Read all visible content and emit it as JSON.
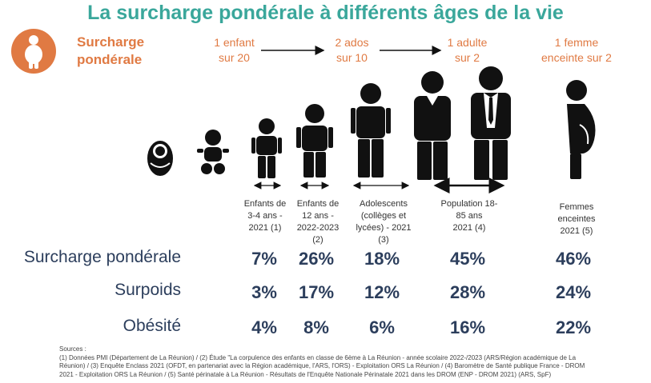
{
  "title": "La surcharge pondérale à différents âges de la vie",
  "legend": {
    "line1": "Surcharge",
    "line2": "pondérale",
    "icon": "overweight-person-icon"
  },
  "ratios": [
    {
      "line1": "1 enfant",
      "line2": "sur 20"
    },
    {
      "line1": "2 ados",
      "line2": "sur 10"
    },
    {
      "line1": "1 adulte",
      "line2": "sur 2"
    },
    {
      "line1": "1 femme",
      "line2": "enceinte sur 2"
    }
  ],
  "columns": [
    {
      "lines": [
        "Enfants de",
        "3-4 ans -",
        "2021 (1)"
      ]
    },
    {
      "lines": [
        "Enfants de",
        "12 ans -",
        "2022-2023",
        "(2)"
      ]
    },
    {
      "lines": [
        "Adolescents",
        "(collèges et",
        "lycées) - 2021",
        "(3)"
      ]
    },
    {
      "lines": [
        "Population 18-",
        "85 ans",
        "2021 (4)"
      ]
    },
    {
      "lines": [
        "Femmes",
        "enceintes",
        "2021 (5)"
      ]
    }
  ],
  "rows": [
    {
      "label": "Surcharge pondérale",
      "values": [
        "7%",
        "26%",
        "18%",
        "45%",
        "46%"
      ]
    },
    {
      "label": "Surpoids",
      "values": [
        "3%",
        "17%",
        "12%",
        "28%",
        "24%"
      ]
    },
    {
      "label": "Obésité",
      "values": [
        "4%",
        "8%",
        "6%",
        "16%",
        "22%"
      ]
    }
  ],
  "sources": [
    "Sources :",
    "(1) Données PMI (Département de La Réunion) / (2) Étude \"La corpulence des enfants en classe de 6ème à La Réunion - année scolaire 2022-/2023 (ARS/Région académique de La",
    "Réunion) / (3) Enquête Enclass 2021 (OFDT, en partenariat avec la Région académique, l'ARS, l'ORS) - Exploitation ORS La Réunion / (4) Baromètre de Santé publique France - DROM",
    "2021 - Exploitation ORS La Réunion /  (5) Santé périnatale à La Réunion - Résultats de l'Enquête Nationale Périnatale 2021 dans les DROM (ENP - DROM 2021) (ARS, SpF)"
  ],
  "colors": {
    "title": "#3aa79b",
    "accent": "#e07a43",
    "values": "#2c3e5c",
    "figure": "#111111"
  }
}
